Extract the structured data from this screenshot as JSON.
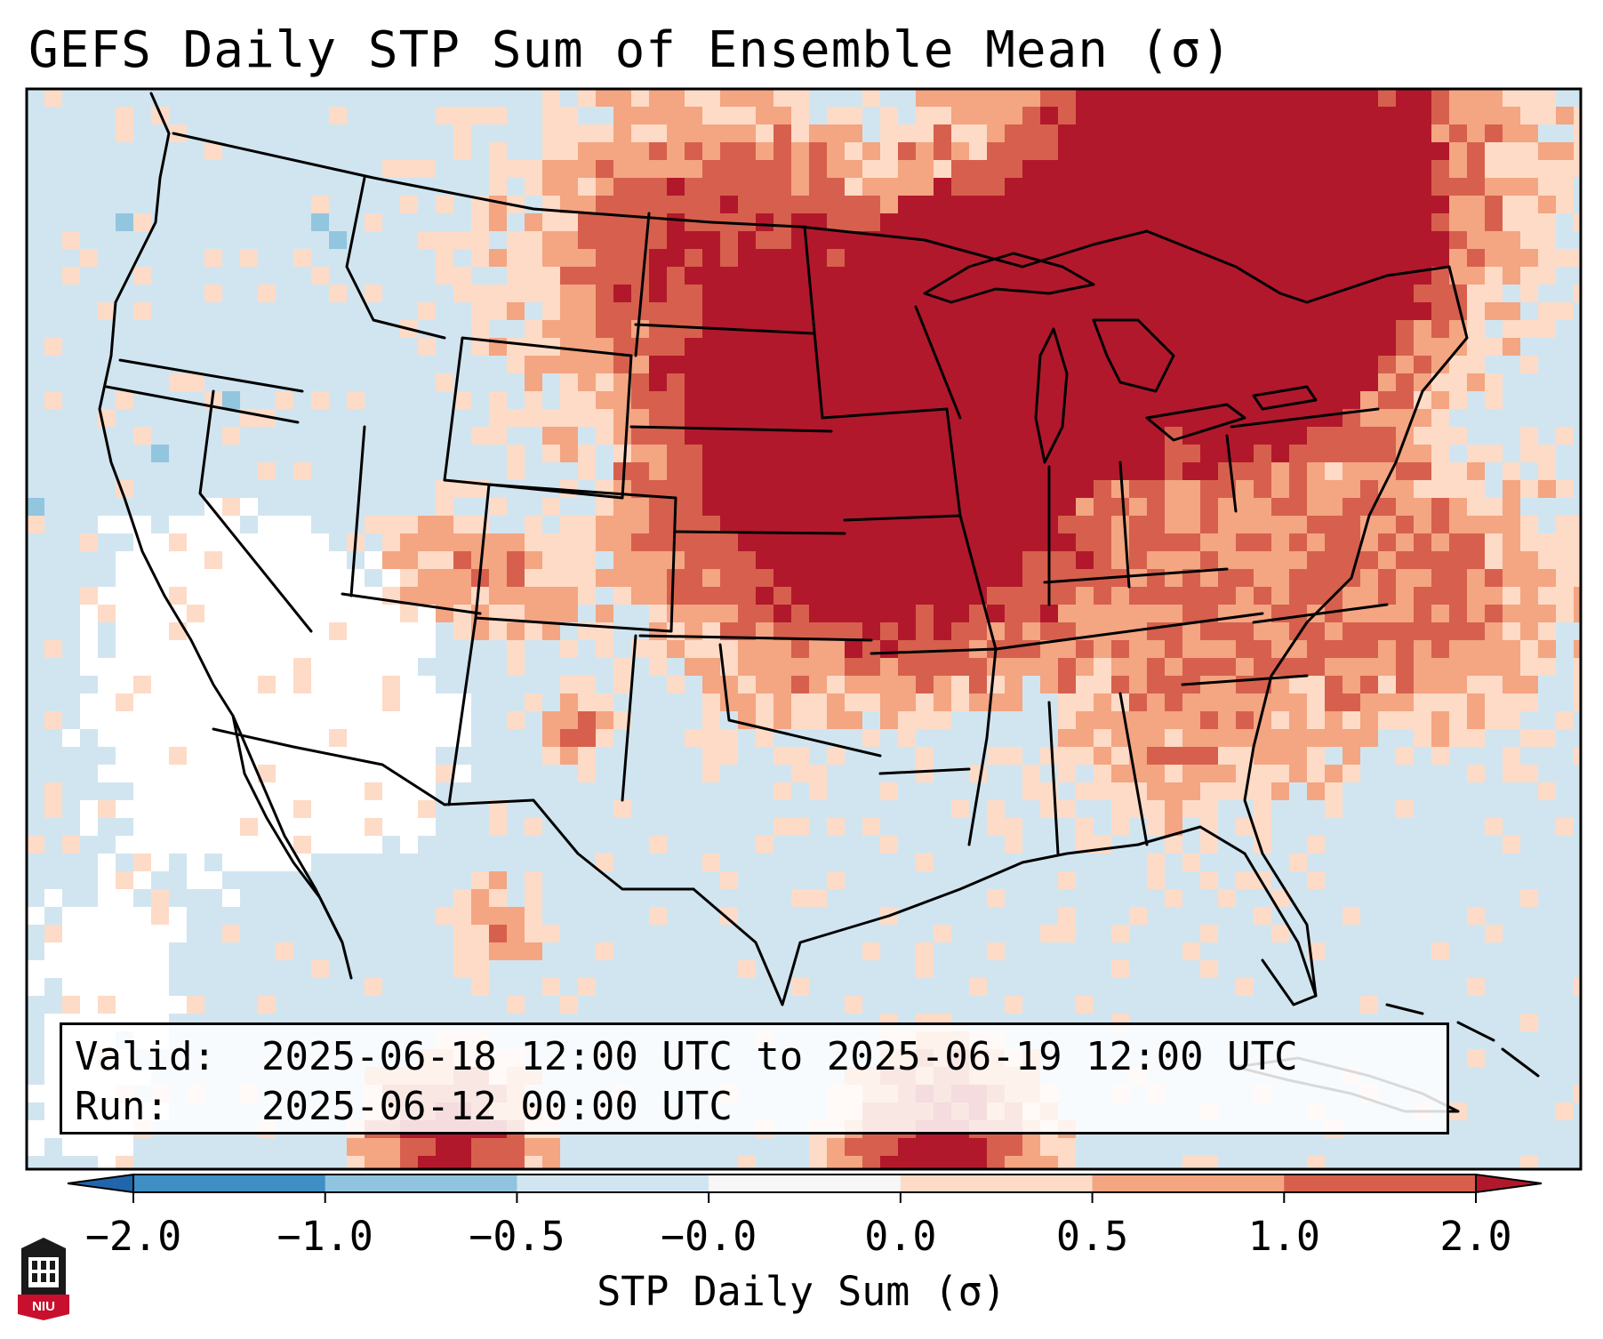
{
  "title": "GEFS Daily STP Sum of Ensemble Mean (σ)",
  "info": {
    "valid_label": "Valid:",
    "valid_value": "2025-06-18 12:00 UTC to 2025-06-19 12:00 UTC",
    "run_label": "Run:",
    "run_value": "2025-06-12 00:00 UTC"
  },
  "colorbar": {
    "label": "STP Daily Sum (σ)",
    "ticks": [
      "−2.0",
      "−1.0",
      "−0.5",
      "−0.0",
      "0.0",
      "0.5",
      "1.0",
      "2.0"
    ],
    "colors": [
      "#3f8ec4",
      "#8fc3de",
      "#d1e5f0",
      "#f7f7f7",
      "#fddbc7",
      "#f4a582",
      "#d6604d"
    ],
    "under_color": "#2166ac",
    "over_color": "#b2182b"
  },
  "map": {
    "background_color": "#d1e5f0",
    "white_color": "#ffffff",
    "light_blue_color": "#92c5de",
    "level_colors": [
      "#fddbc7",
      "#f4a582",
      "#d6604d",
      "#b2182b"
    ]
  },
  "logo": {
    "text": "NIU",
    "color": "#c8102e"
  }
}
